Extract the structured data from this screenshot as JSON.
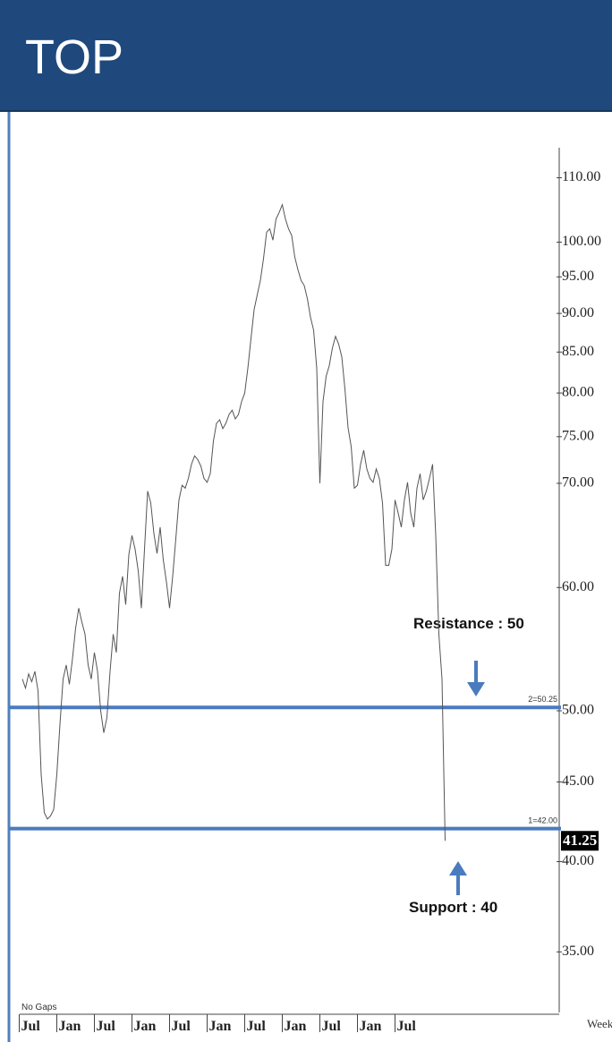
{
  "title": "TOP",
  "chart_data": {
    "type": "line",
    "series": [
      {
        "color": "#555555",
        "values": [
          52.4,
          51.7,
          52.8,
          52.2,
          53.0,
          51.5,
          45.5,
          43.0,
          42.6,
          42.8,
          43.2,
          45.5,
          49.0,
          52.4,
          53.5,
          52.0,
          54.0,
          56.5,
          58.2,
          57.0,
          56.0,
          53.5,
          52.4,
          54.5,
          53.0,
          50.0,
          48.4,
          49.5,
          53.0,
          56.0,
          54.5,
          59.5,
          61.0,
          58.5,
          63.0,
          64.8,
          63.5,
          61.5,
          58.2,
          63.5,
          69.2,
          68.0,
          65.0,
          63.1,
          65.6,
          62.5,
          60.5,
          58.2,
          61.0,
          64.5,
          68.3,
          69.8,
          69.5,
          70.5,
          72.0,
          72.9,
          72.5,
          71.8,
          70.5,
          70.1,
          71.0,
          74.5,
          76.5,
          76.9,
          75.9,
          76.5,
          77.5,
          78.0,
          77.0,
          77.5,
          79.0,
          80.0,
          83.0,
          86.7,
          90.5,
          92.5,
          94.5,
          97.6,
          101.5,
          102.0,
          100.3,
          103.5,
          104.5,
          105.7,
          103.5,
          102.0,
          101.0,
          97.8,
          96.0,
          94.5,
          93.8,
          92.0,
          89.5,
          87.8,
          83.0,
          70.0,
          79.0,
          82.0,
          83.3,
          85.5,
          87.0,
          86.0,
          84.4,
          80.5,
          76.0,
          73.9,
          69.5,
          69.8,
          72.0,
          73.5,
          71.5,
          70.5,
          70.1,
          71.5,
          70.5,
          68.0,
          62.0,
          62.0,
          63.5,
          68.3,
          67.0,
          65.6,
          68.3,
          70.1,
          67.0,
          65.6,
          69.5,
          71.0,
          68.3,
          69.2,
          70.5,
          72.0,
          64.8,
          56.0,
          52.4,
          41.25
        ]
      }
    ],
    "categories": [
      null,
      null,
      null,
      "Jul",
      null,
      null,
      null,
      null,
      null,
      null,
      null,
      null,
      null,
      null,
      null,
      "Jan",
      null,
      null,
      null,
      null,
      null,
      null,
      null,
      null,
      null,
      null,
      null,
      "Jul",
      null,
      null,
      null,
      null,
      null,
      null,
      null,
      null,
      null,
      null,
      null,
      "Jan",
      null,
      null,
      null,
      null,
      null,
      null,
      null,
      null,
      null,
      null,
      null,
      "Jul",
      null,
      null,
      null,
      null,
      null,
      null,
      null,
      null,
      null,
      null,
      null,
      "Jan",
      null,
      null,
      null,
      null,
      null,
      null,
      null,
      null,
      null,
      null,
      null,
      "Jul",
      null,
      null,
      null,
      null,
      null,
      null,
      null,
      null,
      null,
      null,
      null,
      "Jan",
      null,
      null,
      null,
      null,
      null,
      null,
      null,
      null,
      null,
      null,
      null,
      "Jul",
      null,
      null,
      null,
      null,
      null,
      null,
      null,
      null,
      null,
      null,
      null,
      "Jan",
      null,
      null,
      null,
      null,
      null,
      null,
      null,
      null,
      null,
      null,
      null,
      "Jul",
      null,
      null,
      null,
      null,
      null,
      null,
      null,
      null,
      null,
      null,
      null,
      null
    ],
    "ylim": [
      32,
      115
    ],
    "log_scale": true,
    "yticks": [
      {
        "value": 35,
        "label": "35.00"
      },
      {
        "value": 40,
        "label": "40.00"
      },
      {
        "value": 45,
        "label": "45.00"
      },
      {
        "value": 50,
        "label": "50.00"
      },
      {
        "value": 60,
        "label": "60.00"
      },
      {
        "value": 70,
        "label": "70.00"
      },
      {
        "value": 75,
        "label": "75.00"
      },
      {
        "value": 80,
        "label": "80.00"
      },
      {
        "value": 85,
        "label": "85.00"
      },
      {
        "value": 90,
        "label": "90.00"
      },
      {
        "value": 95,
        "label": "95.00"
      },
      {
        "value": 100,
        "label": "100.00"
      },
      {
        "value": 110,
        "label": "110.00"
      }
    ],
    "levels": [
      {
        "value": 50.25,
        "label": "2=50.25",
        "color": "#4a7bbf"
      },
      {
        "value": 42.0,
        "label": "1=42.00",
        "color": "#4a7bbf"
      }
    ],
    "last_value": 41.25,
    "annotations": [
      "Resistance : 50",
      "Support : 40"
    ],
    "note": "No Gaps",
    "x_label": "Week"
  }
}
